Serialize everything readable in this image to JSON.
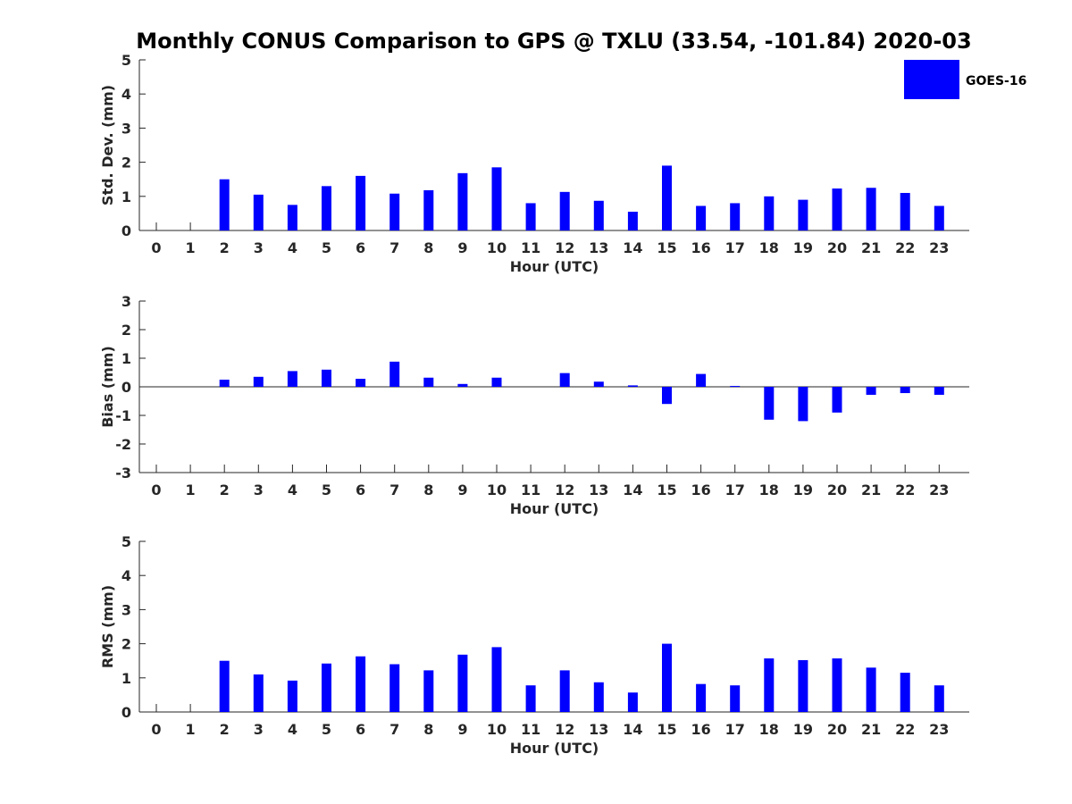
{
  "title": "Monthly CONUS Comparison to GPS @ TXLU (33.54, -101.84) 2020-03",
  "legend": {
    "label": "GOES-16",
    "color": "#0000ff"
  },
  "chart_data": [
    {
      "type": "bar",
      "ylabel": "Std. Dev. (mm)",
      "xlabel": "Hour (UTC)",
      "ylim": [
        0,
        5
      ],
      "yticks": [
        0,
        1,
        2,
        3,
        4,
        5
      ],
      "categories": [
        "0",
        "1",
        "2",
        "3",
        "4",
        "5",
        "6",
        "7",
        "8",
        "9",
        "10",
        "11",
        "12",
        "13",
        "14",
        "15",
        "16",
        "17",
        "18",
        "19",
        "20",
        "21",
        "22",
        "23"
      ],
      "series": [
        {
          "name": "GOES-16",
          "values": [
            null,
            null,
            1.5,
            1.05,
            0.75,
            1.3,
            1.6,
            1.08,
            1.18,
            1.68,
            1.85,
            0.8,
            1.13,
            0.87,
            0.55,
            1.9,
            0.72,
            0.8,
            1.0,
            0.9,
            1.23,
            1.25,
            1.1,
            0.72
          ]
        }
      ]
    },
    {
      "type": "bar",
      "ylabel": "Bias (mm)",
      "xlabel": "Hour (UTC)",
      "ylim": [
        -3,
        3
      ],
      "yticks": [
        -3,
        -2,
        -1,
        0,
        1,
        2,
        3
      ],
      "categories": [
        "0",
        "1",
        "2",
        "3",
        "4",
        "5",
        "6",
        "7",
        "8",
        "9",
        "10",
        "11",
        "12",
        "13",
        "14",
        "15",
        "16",
        "17",
        "18",
        "19",
        "20",
        "21",
        "22",
        "23"
      ],
      "series": [
        {
          "name": "GOES-16",
          "values": [
            null,
            null,
            0.25,
            0.35,
            0.55,
            0.6,
            0.28,
            0.88,
            0.32,
            0.1,
            0.32,
            null,
            0.48,
            0.18,
            0.05,
            -0.6,
            0.45,
            0.03,
            -1.15,
            -1.2,
            -0.9,
            -0.28,
            -0.22,
            -0.28
          ]
        }
      ]
    },
    {
      "type": "bar",
      "ylabel": "RMS (mm)",
      "xlabel": "Hour (UTC)",
      "ylim": [
        0,
        5
      ],
      "yticks": [
        0,
        1,
        2,
        3,
        4,
        5
      ],
      "categories": [
        "0",
        "1",
        "2",
        "3",
        "4",
        "5",
        "6",
        "7",
        "8",
        "9",
        "10",
        "11",
        "12",
        "13",
        "14",
        "15",
        "16",
        "17",
        "18",
        "19",
        "20",
        "21",
        "22",
        "23"
      ],
      "series": [
        {
          "name": "GOES-16",
          "values": [
            null,
            null,
            1.5,
            1.1,
            0.92,
            1.42,
            1.63,
            1.4,
            1.22,
            1.68,
            1.9,
            0.78,
            1.22,
            0.87,
            0.57,
            2.0,
            0.82,
            0.78,
            1.57,
            1.52,
            1.57,
            1.3,
            1.15,
            0.78
          ]
        }
      ]
    }
  ]
}
